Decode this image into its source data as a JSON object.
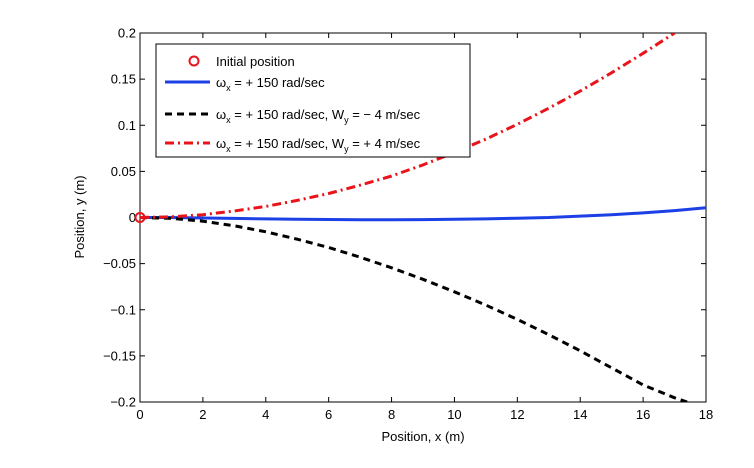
{
  "chart_data": {
    "type": "line",
    "title": "",
    "xlabel": "Position, x (m)",
    "ylabel": "Position, y (m)",
    "xlim": [
      0,
      18
    ],
    "ylim": [
      -0.2,
      0.2
    ],
    "xticks": [
      0,
      2,
      4,
      6,
      8,
      10,
      12,
      14,
      16,
      18
    ],
    "yticks": [
      -0.2,
      -0.15,
      -0.1,
      -0.05,
      0,
      0.05,
      0.1,
      0.15,
      0.2
    ],
    "xtick_labels": [
      "0",
      "2",
      "4",
      "6",
      "8",
      "10",
      "12",
      "14",
      "16",
      "18"
    ],
    "ytick_labels": [
      "−0.2",
      "−0.15",
      "−0.1",
      "−0.05",
      "0",
      "0.05",
      "0.1",
      "0.15",
      "0.2"
    ],
    "grid": false,
    "legend_position": "top-left",
    "initial_position": {
      "label": "Initial position",
      "x": 0,
      "y": 0,
      "color": "#e8141a"
    },
    "series": [
      {
        "legend": {
          "pre": "ω",
          "sub": "x",
          "post": " = + 150 rad/sec",
          "pre2": "",
          "sub2": "",
          "post2": ""
        },
        "color": "#1c3fe6",
        "style": "solid",
        "x": [
          0,
          1,
          2,
          3,
          4,
          5,
          6,
          7,
          8,
          9,
          10,
          11,
          12,
          13,
          14,
          15,
          16,
          17,
          18
        ],
        "y": [
          0,
          0,
          -0.0005,
          -0.001,
          -0.0015,
          -0.002,
          -0.0022,
          -0.0024,
          -0.0024,
          -0.0023,
          -0.002,
          -0.0015,
          -0.0008,
          0,
          0.0015,
          0.003,
          0.005,
          0.0075,
          0.0105
        ]
      },
      {
        "legend": {
          "pre": "ω",
          "sub": "x",
          "post": " = + 150 rad/sec, W",
          "pre2": "",
          "sub2": "y",
          "post2": " = − 4 m/sec"
        },
        "color": "#000000",
        "style": "dashed",
        "x": [
          0,
          1,
          2,
          3,
          4,
          5,
          6,
          7,
          8,
          9,
          10,
          11,
          12,
          13,
          14,
          15,
          16,
          17,
          17.4
        ],
        "y": [
          0,
          -0.001,
          -0.004,
          -0.009,
          -0.0155,
          -0.0235,
          -0.0325,
          -0.043,
          -0.0545,
          -0.067,
          -0.0805,
          -0.095,
          -0.1105,
          -0.127,
          -0.1445,
          -0.163,
          -0.1815,
          -0.1955,
          -0.2
        ]
      },
      {
        "legend": {
          "pre": "ω",
          "sub": "x",
          "post": " = + 150 rad/sec, W",
          "pre2": "",
          "sub2": "y",
          "post2": " = + 4 m/sec"
        },
        "color": "#e8141a",
        "style": "dashdot",
        "x": [
          0,
          1,
          2,
          3,
          4,
          5,
          6,
          7,
          8,
          9,
          10,
          11,
          12,
          13,
          14,
          15,
          16,
          17
        ],
        "y": [
          0,
          0.0008,
          0.003,
          0.007,
          0.012,
          0.0185,
          0.026,
          0.035,
          0.045,
          0.057,
          0.0705,
          0.085,
          0.101,
          0.1185,
          0.137,
          0.157,
          0.178,
          0.2
        ]
      }
    ]
  }
}
